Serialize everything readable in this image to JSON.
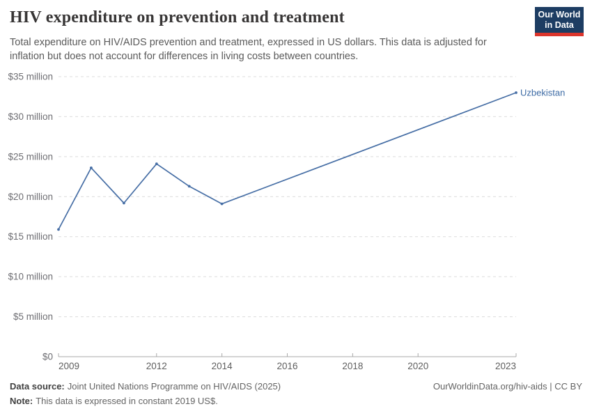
{
  "header": {
    "title": "HIV expenditure on prevention and treatment",
    "subtitle": "Total expenditure on HIV/AIDS prevention and treatment, expressed in US dollars. This data is adjusted for inflation but does not account for differences in living costs between countries.",
    "logo": {
      "line1": "Our World",
      "line2": "in Data"
    }
  },
  "chart_data": {
    "type": "line",
    "title": "HIV expenditure on prevention and treatment",
    "unit": "US dollars (constant 2019 US$)",
    "series": [
      {
        "name": "Uzbekistan",
        "x": [
          2009,
          2010,
          2011,
          2012,
          2013,
          2014,
          2023
        ],
        "values_million_usd": [
          15.9,
          23.6,
          19.2,
          24.1,
          21.3,
          19.1,
          33.0
        ]
      }
    ],
    "xlim": [
      2009,
      2023
    ],
    "ylim_million_usd": [
      0,
      35
    ],
    "xticks": [
      2009,
      2012,
      2014,
      2016,
      2018,
      2020,
      2023
    ],
    "yticks": [
      {
        "value": 0,
        "label": "$0"
      },
      {
        "value": 5,
        "label": "$5 million"
      },
      {
        "value": 10,
        "label": "$10 million"
      },
      {
        "value": 15,
        "label": "$15 million"
      },
      {
        "value": 20,
        "label": "$20 million"
      },
      {
        "value": 25,
        "label": "$25 million"
      },
      {
        "value": 30,
        "label": "$30 million"
      },
      {
        "value": 35,
        "label": "$35 million"
      }
    ],
    "grid": "horizontal-dashed",
    "legend_position": "end-of-line-label",
    "end_label": "Uzbekistan"
  },
  "footer": {
    "source_label": "Data source:",
    "source_value": "Joint United Nations Programme on HIV/AIDS (2025)",
    "note_label": "Note:",
    "note_value": "This data is expressed in constant 2019 US$.",
    "attribution": "OurWorldinData.org/hiv-aids | CC BY"
  },
  "colors": {
    "line": "#466ea5",
    "entity_label": "#3d6ba5",
    "logo_bg": "#1d3d63",
    "logo_accent": "#dc352c",
    "grid": "#dcdcdc",
    "axis": "#a8a8a8",
    "axis_text": "#5e5e5e",
    "ytick_text": "#6e6e73",
    "title_text": "#383636",
    "subtitle_text": "#5a5a5a",
    "footer_text": "#636363",
    "footer_label_text": "#3f3f3f"
  }
}
